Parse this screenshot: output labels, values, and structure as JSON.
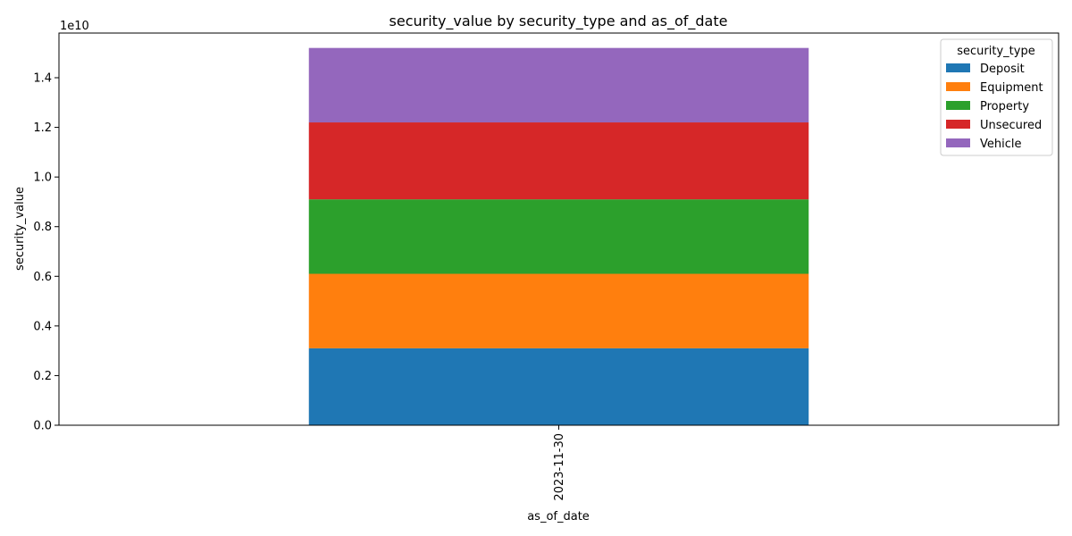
{
  "chart_data": {
    "type": "bar",
    "stacked": true,
    "title": "security_value by security_type and as_of_date",
    "xlabel": "as_of_date",
    "ylabel": "security_value",
    "y_offset_label": "1e10",
    "categories": [
      "2023-11-30"
    ],
    "ylim": [
      0,
      1.58
    ],
    "yticks": [
      "0.0",
      "0.2",
      "0.4",
      "0.6",
      "0.8",
      "1.0",
      "1.2",
      "1.4"
    ],
    "ytick_values": [
      0.0,
      0.2,
      0.4,
      0.6,
      0.8,
      1.0,
      1.2,
      1.4
    ],
    "legend": {
      "title": "security_type",
      "position": "top-right"
    },
    "grid": false,
    "series": [
      {
        "name": "Deposit",
        "values": [
          0.31
        ],
        "color": "#1f77b4"
      },
      {
        "name": "Equipment",
        "values": [
          0.3
        ],
        "color": "#ff7f0e"
      },
      {
        "name": "Property",
        "values": [
          0.3
        ],
        "color": "#2ca02c"
      },
      {
        "name": "Unsecured",
        "values": [
          0.31
        ],
        "color": "#d62728"
      },
      {
        "name": "Vehicle",
        "values": [
          0.3
        ],
        "color": "#9467bd"
      }
    ]
  }
}
